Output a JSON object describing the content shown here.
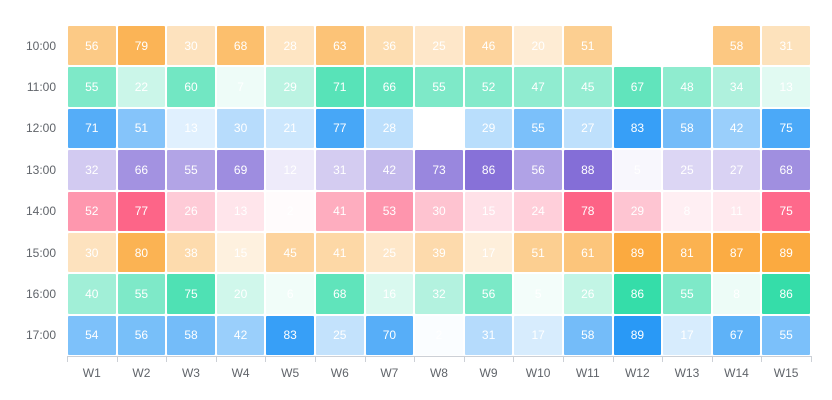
{
  "chart_data": {
    "type": "heatmap",
    "title": "",
    "xlabel": "",
    "ylabel": "",
    "value_range": [
      0,
      100
    ],
    "grid": false,
    "legend": "none",
    "background_color": "#ffffff",
    "cell_text_color": "#ffffff",
    "axis_label_color": "#60646a",
    "axis_line_color": "#ccd0d6",
    "x_categories": [
      "W1",
      "W2",
      "W3",
      "W4",
      "W5",
      "W6",
      "W7",
      "W8",
      "W9",
      "W10",
      "W11",
      "W12",
      "W13",
      "W14",
      "W15"
    ],
    "y_categories": [
      "10:00",
      "11:00",
      "12:00",
      "13:00",
      "14:00",
      "15:00",
      "16:00",
      "17:00"
    ],
    "row_base_colors": [
      "#faa028",
      "#14d79b",
      "#0f8cf5",
      "#735ad2",
      "#fd3764",
      "#faa028",
      "#14d79b",
      "#0f8cf5"
    ],
    "series": [
      {
        "name": "10:00",
        "color": "#faa028",
        "values": [
          56,
          79,
          30,
          68,
          28,
          63,
          36,
          25,
          46,
          20,
          51,
          null,
          null,
          58,
          31
        ]
      },
      {
        "name": "11:00",
        "color": "#14d79b",
        "values": [
          55,
          22,
          60,
          7,
          29,
          71,
          66,
          55,
          52,
          47,
          45,
          67,
          48,
          34,
          13
        ]
      },
      {
        "name": "12:00",
        "color": "#0f8cf5",
        "values": [
          71,
          51,
          13,
          30,
          21,
          77,
          28,
          null,
          29,
          55,
          27,
          83,
          58,
          42,
          75
        ]
      },
      {
        "name": "13:00",
        "color": "#735ad2",
        "values": [
          32,
          66,
          55,
          69,
          12,
          31,
          42,
          73,
          86,
          56,
          88,
          5,
          25,
          27,
          68
        ]
      },
      {
        "name": "14:00",
        "color": "#fd3764",
        "values": [
          52,
          77,
          26,
          13,
          2,
          41,
          53,
          30,
          15,
          24,
          78,
          29,
          8,
          11,
          75
        ]
      },
      {
        "name": "15:00",
        "color": "#faa028",
        "values": [
          30,
          80,
          38,
          15,
          45,
          41,
          25,
          39,
          17,
          51,
          61,
          89,
          81,
          87,
          89
        ]
      },
      {
        "name": "16:00",
        "color": "#14d79b",
        "values": [
          40,
          55,
          75,
          20,
          6,
          68,
          16,
          32,
          56,
          5,
          26,
          86,
          55,
          8,
          86
        ]
      },
      {
        "name": "17:00",
        "color": "#0f8cf5",
        "values": [
          54,
          56,
          58,
          42,
          83,
          25,
          70,
          2,
          31,
          17,
          58,
          89,
          17,
          67,
          55
        ]
      }
    ]
  }
}
